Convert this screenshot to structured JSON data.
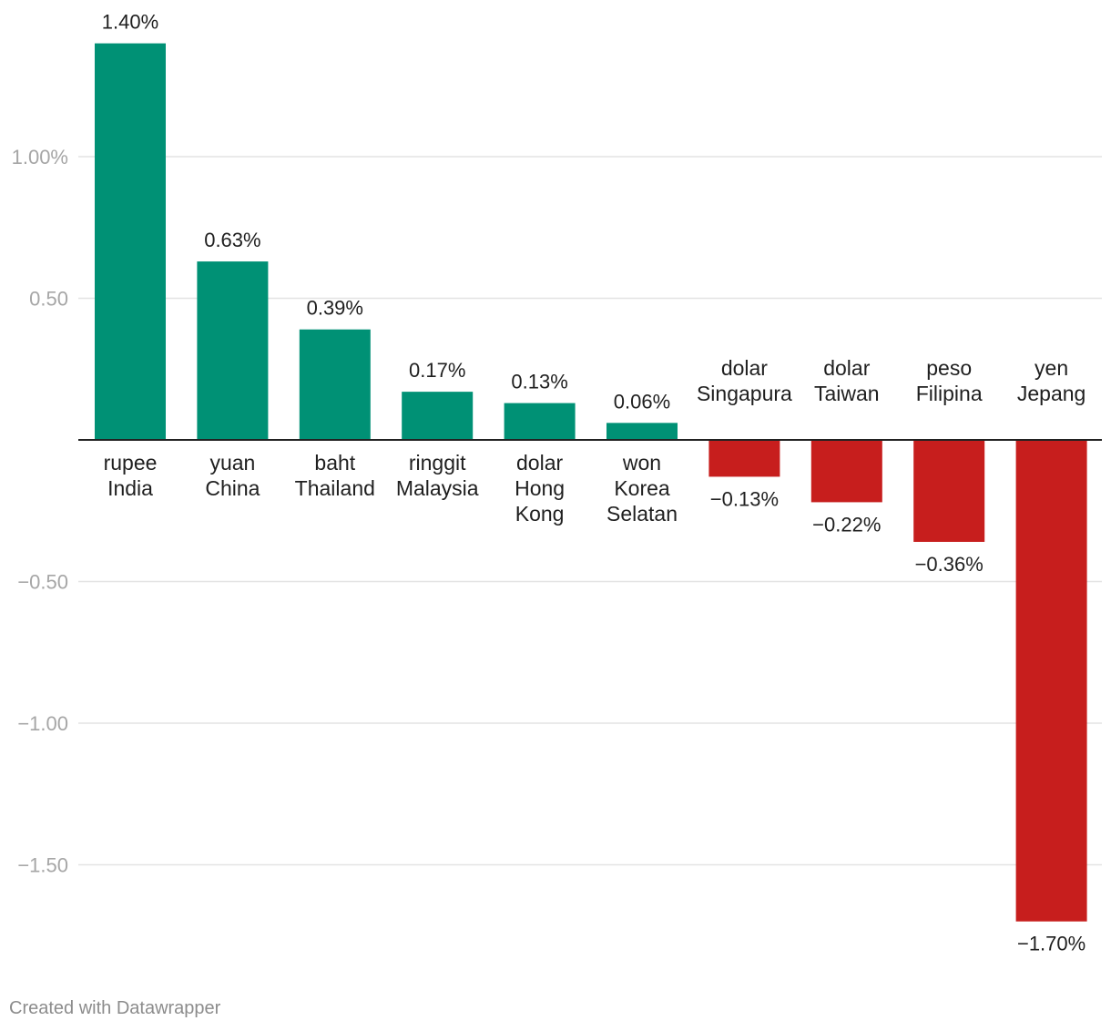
{
  "chart_data": {
    "type": "bar",
    "title": "",
    "xlabel": "",
    "ylabel": "",
    "categories": [
      [
        "rupee",
        "India"
      ],
      [
        "yuan",
        "China"
      ],
      [
        "baht",
        "Thailand"
      ],
      [
        "ringgit",
        "Malaysia"
      ],
      [
        "dolar",
        "Hong",
        "Kong"
      ],
      [
        "won",
        "Korea",
        "Selatan"
      ],
      [
        "dolar",
        "Singapura"
      ],
      [
        "dolar",
        "Taiwan"
      ],
      [
        "peso",
        "Filipina"
      ],
      [
        "yen",
        "Jepang"
      ]
    ],
    "values": [
      1.4,
      0.63,
      0.39,
      0.17,
      0.13,
      0.06,
      -0.13,
      -0.22,
      -0.36,
      -1.7
    ],
    "value_labels": [
      "1.40%",
      "0.63%",
      "0.39%",
      "0.17%",
      "0.13%",
      "0.06%",
      "−0.13%",
      "−0.22%",
      "−0.36%",
      "−1.70%"
    ],
    "yticks": [
      1.0,
      0.5,
      -0.5,
      -1.0,
      -1.5
    ],
    "ytick_labels": [
      "1.00%",
      "0.50",
      "−0.50",
      "−1.00",
      "−1.50"
    ],
    "ylim": [
      -1.75,
      1.45
    ],
    "grid": true,
    "colors": {
      "positive": "#009175",
      "negative": "#c71e1d"
    }
  },
  "footer": {
    "credit": "Created with Datawrapper"
  }
}
